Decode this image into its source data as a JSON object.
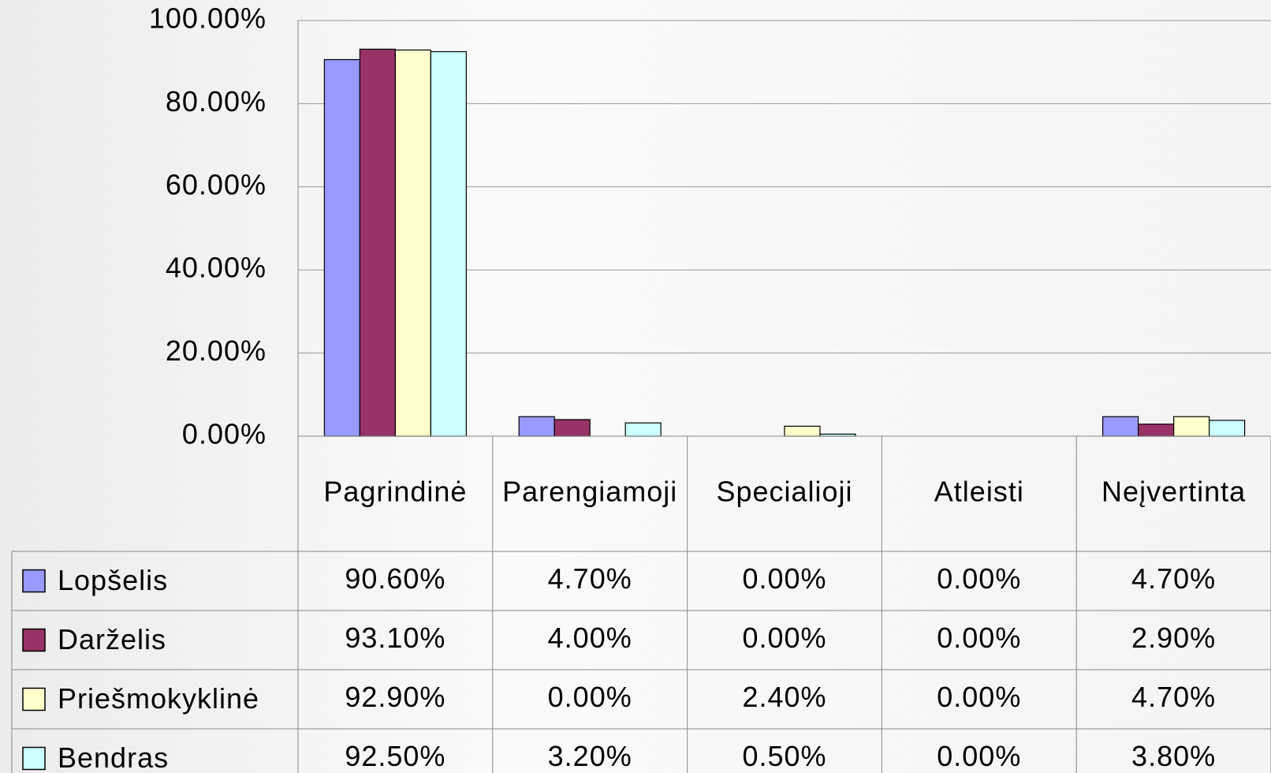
{
  "chart_data": {
    "type": "bar",
    "categories": [
      "Pagrindinė",
      "Parengiamoji",
      "Specialioji",
      "Atleisti",
      "Neįvertinta"
    ],
    "series": [
      {
        "name": "Lopšelis",
        "color": "#9999ff",
        "values": [
          90.6,
          4.7,
          0,
          0,
          4.7
        ],
        "value_labels": [
          "90.60%",
          "4.70%",
          "0.00%",
          "0.00%",
          "4.70%"
        ]
      },
      {
        "name": "Darželis",
        "color": "#993366",
        "values": [
          93.1,
          4.0,
          0,
          0,
          2.9
        ],
        "value_labels": [
          "93.10%",
          "4.00%",
          "0.00%",
          "0.00%",
          "2.90%"
        ]
      },
      {
        "name": "Priešmokyklinė",
        "color": "#ffffcc",
        "values": [
          92.9,
          0,
          2.4,
          0,
          4.7
        ],
        "value_labels": [
          "92.90%",
          "0.00%",
          "2.40%",
          "0.00%",
          "4.70%"
        ]
      },
      {
        "name": "Bendras",
        "color": "#ccffff",
        "values": [
          92.5,
          3.2,
          0.5,
          0,
          3.8
        ],
        "value_labels": [
          "92.50%",
          "3.20%",
          "0.50%",
          "0.00%",
          "3.80%"
        ]
      }
    ],
    "ylim": [
      0,
      100
    ],
    "yticks": [
      {
        "value": 0,
        "label": "0.00%"
      },
      {
        "value": 20,
        "label": "20.00%"
      },
      {
        "value": 40,
        "label": "40.00%"
      },
      {
        "value": 60,
        "label": "60.00%"
      },
      {
        "value": 80,
        "label": "80.00%"
      },
      {
        "value": 100,
        "label": "100.00%"
      }
    ],
    "grid": true
  }
}
